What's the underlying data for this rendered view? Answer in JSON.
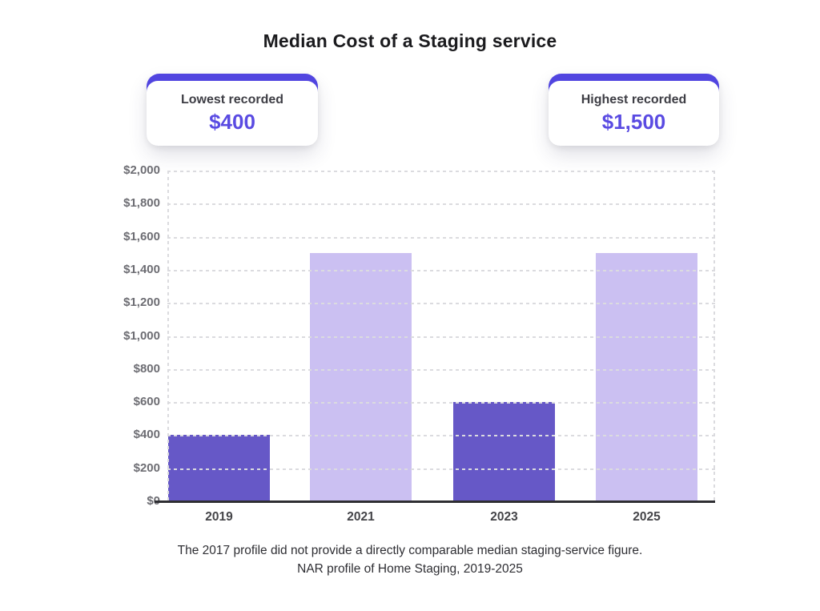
{
  "title": "Median Cost of a Staging service",
  "stat_cards": [
    {
      "label": "Lowest recorded",
      "value": "$400"
    },
    {
      "label": "Highest recorded",
      "value": "$1,500"
    }
  ],
  "chart_data": {
    "type": "bar",
    "title": "Median Cost of a Staging service",
    "categories": [
      "2019",
      "2021",
      "2023",
      "2025"
    ],
    "values": [
      400,
      1500,
      600,
      1500
    ],
    "ylim": [
      0,
      2000
    ],
    "ytick_step": 200,
    "ytick_labels": [
      "$0",
      "$200",
      "$400",
      "$600",
      "$800",
      "$1,000",
      "$1,200",
      "$1,400",
      "$1,600",
      "$1,800",
      "$2,000"
    ],
    "bar_colors": [
      "#6658c7",
      "#cbc0f2",
      "#6658c7",
      "#cbc0f2"
    ],
    "grid": "horizontal dotted lines drawn over bars; dotted vertical borders at plot left and right edges",
    "legend": "none",
    "xlabel": "",
    "ylabel": ""
  },
  "footnote": {
    "line1": "The 2017 profile did not provide a directly comparable median staging-service figure.",
    "line2": "NAR profile of Home Staging, 2019-2025"
  },
  "colors": {
    "background": "#ffffff",
    "accent": "#5145e0",
    "stat_value": "#5a4be2",
    "bar_dark": "#6658c7",
    "bar_light": "#cbc0f2",
    "gridline": "#dbdbdf",
    "axis_line": "#2e2e32",
    "ytick_text": "#6d6d73",
    "xtick_text": "#454549",
    "title_text": "#1b1b1e",
    "footnote_text": "#2e2e33"
  }
}
